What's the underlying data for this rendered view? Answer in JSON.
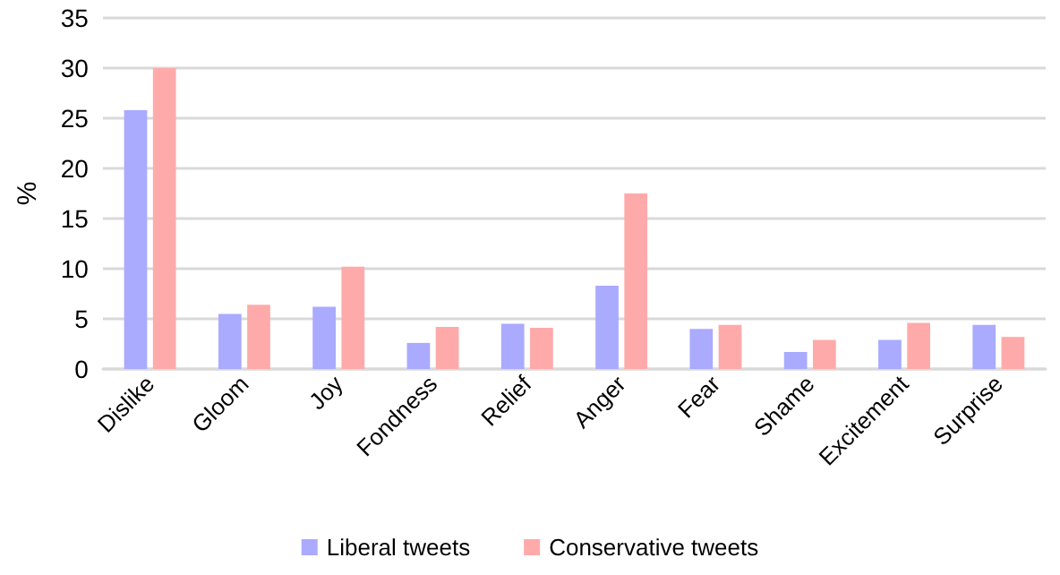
{
  "chart_data": {
    "type": "bar",
    "ylabel": "%",
    "categories": [
      "Dislike",
      "Gloom",
      "Joy",
      "Fondness",
      "Relief",
      "Anger",
      "Fear",
      "Shame",
      "Excitement",
      "Surprise"
    ],
    "series": [
      {
        "name": "Liberal tweets",
        "color": "#aaaaff",
        "values": [
          25.8,
          5.5,
          6.2,
          2.6,
          4.5,
          8.3,
          4.0,
          1.7,
          2.9,
          4.4
        ]
      },
      {
        "name": "Conservative tweets",
        "color": "#ffaaaa",
        "values": [
          30.0,
          6.4,
          10.2,
          4.2,
          4.1,
          17.5,
          4.4,
          2.9,
          4.6,
          3.2
        ]
      }
    ],
    "ylim": [
      0,
      35
    ],
    "yticks": [
      0,
      5,
      10,
      15,
      20,
      25,
      30,
      35
    ],
    "grid": "y",
    "legend": "bottom"
  }
}
